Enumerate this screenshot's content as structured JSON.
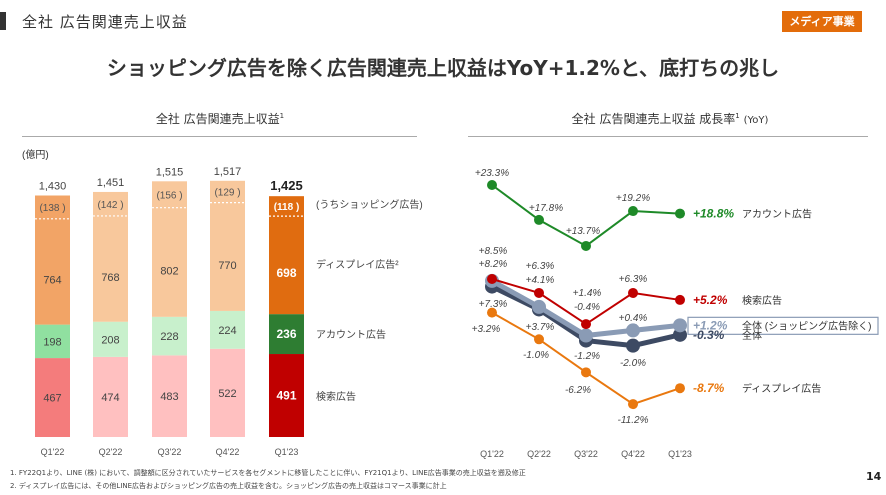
{
  "header": {
    "section_title": "全社 広告関連売上収益",
    "badge": "メディア事業",
    "headline": "ショッピング広告を除く広告関連売上収益はYoY+1.2%と、底打ちの兆し"
  },
  "colors": {
    "accent": "#e36c0a",
    "search_highlight": "#c00000",
    "account_highlight": "#2e7d32",
    "display_highlight": "#e06c10"
  },
  "chart_data": [
    {
      "type": "bar",
      "stacked": true,
      "title": "全社 広告関連売上収益",
      "title_note": "1",
      "unit": "(億円)",
      "categories": [
        "Q1'22",
        "Q2'22",
        "Q3'22",
        "Q4'22",
        "Q1'23"
      ],
      "totals": [
        "1,430",
        "1,451",
        "1,515",
        "1,517",
        "1,425"
      ],
      "series": [
        {
          "name": "検索広告",
          "values": [
            467,
            474,
            483,
            522,
            491
          ]
        },
        {
          "name": "アカウント広告",
          "values": [
            198,
            208,
            228,
            224,
            236
          ]
        },
        {
          "name": "ディスプレイ広告",
          "name_note": "2",
          "values": [
            764,
            768,
            802,
            770,
            698
          ]
        }
      ],
      "shopping": {
        "name": "(うちショッピング広告)",
        "values": [
          138,
          142,
          156,
          129,
          118
        ]
      },
      "total_values": [
        1430,
        1451,
        1515,
        1517,
        1425
      ]
    },
    {
      "type": "line",
      "title": "全社 広告関連売上収益 成長率",
      "title_note": "1",
      "title_suffix": "(YoY)",
      "categories": [
        "Q1'22",
        "Q2'22",
        "Q3'22",
        "Q4'22",
        "Q1'23"
      ],
      "series": [
        {
          "name": "アカウント広告",
          "color": "#1e8a28",
          "values": [
            23.3,
            17.8,
            13.7,
            19.2,
            18.8
          ],
          "labels": [
            "+23.3%",
            "+17.8%",
            "+13.7%",
            "+19.2%",
            "+18.8%"
          ]
        },
        {
          "name": "検索広告",
          "color": "#c00000",
          "values": [
            8.5,
            6.3,
            1.4,
            6.3,
            5.2
          ],
          "labels": [
            "+8.5%",
            "+6.3%",
            "+1.4%",
            "+6.3%",
            "+5.2%"
          ]
        },
        {
          "name": "全体 (ショッピング広告除く)",
          "color": "#8a9bb5",
          "values": [
            8.2,
            4.1,
            -0.4,
            0.4,
            1.2
          ],
          "labels": [
            "+8.2%",
            "+4.1%",
            "-0.4%",
            "+0.4%",
            "+1.2%"
          ]
        },
        {
          "name": "全体",
          "color": "#3d4a63",
          "values": [
            7.3,
            3.7,
            -1.2,
            -2.0,
            -0.3
          ],
          "labels": [
            "+7.3%",
            "+3.7%",
            "-1.2%",
            "-2.0%",
            "-0.3%"
          ]
        },
        {
          "name": "ディスプレイ広告",
          "color": "#e9780f",
          "values": [
            3.2,
            -1.0,
            -6.2,
            -11.2,
            -8.7
          ],
          "labels": [
            "+3.2%",
            "-1.0%",
            "-6.2%",
            "-11.2%",
            "-8.7%"
          ]
        }
      ]
    }
  ],
  "footnotes": [
    "1. FY22Q1より、LINE (株) において、調整額に区分されていたサービスを各セグメントに移管したことに伴い、FY21Q1より、LINE広告事業の売上収益を遡及修正",
    "2. ディスプレイ広告には、その他LINE広告およびショッピング広告の売上収益を含む。ショッピング広告の売上収益はコマース事業に計上"
  ],
  "page_number": "14"
}
